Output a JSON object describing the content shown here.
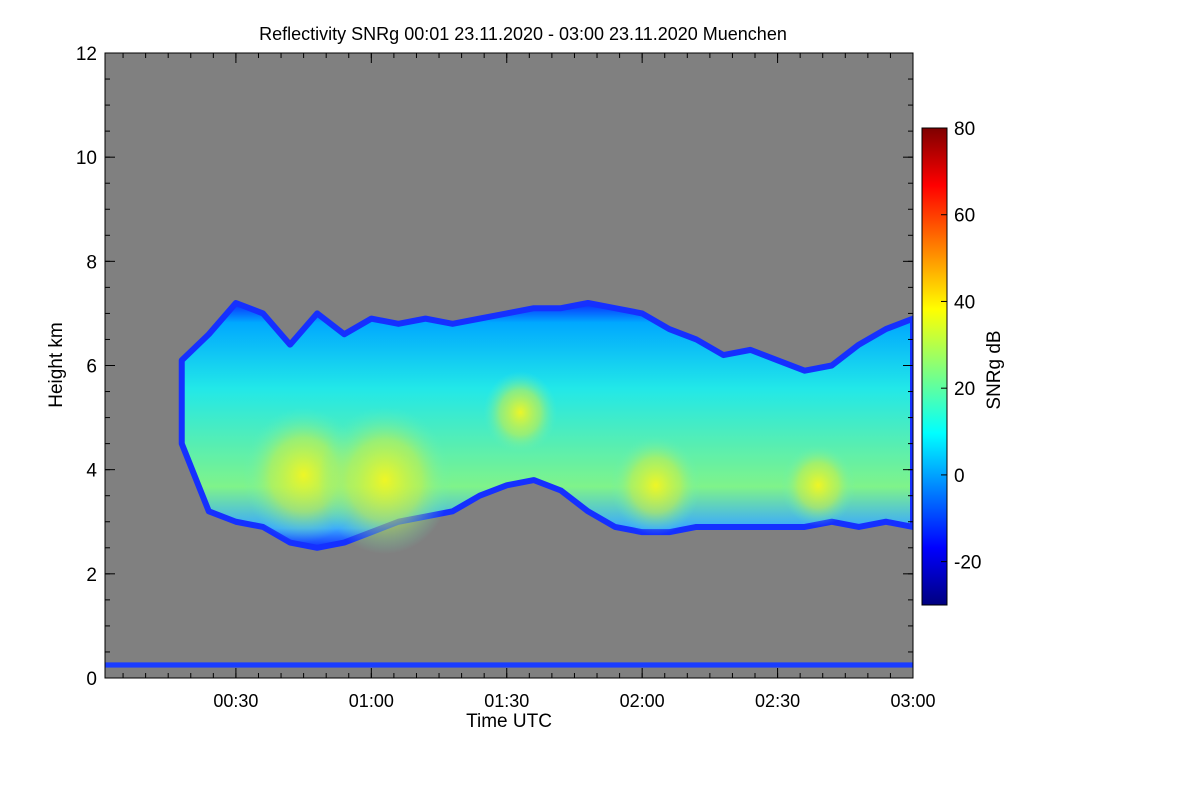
{
  "chart_data": {
    "type": "heatmap",
    "title": "Reflectivity SNRg   00:01 23.11.2020 - 03:00 23.11.2020 Muenchen",
    "xlabel": "Time UTC",
    "ylabel": "Height km",
    "x_range": [
      "00:01",
      "03:00"
    ],
    "x_ticks": [
      "00:30",
      "01:00",
      "01:30",
      "02:00",
      "02:30",
      "03:00"
    ],
    "y_range": [
      0,
      12
    ],
    "y_ticks": [
      "0",
      "2",
      "4",
      "6",
      "8",
      "10",
      "12"
    ],
    "colorbar": {
      "label": "SNRg dB",
      "range": [
        -30,
        80
      ],
      "ticks": [
        "-20",
        "0",
        "20",
        "40",
        "60",
        "80"
      ],
      "colormap": "jet"
    },
    "background_color": "#808080",
    "cloud": {
      "top_km": [
        [
          0.3,
          6.1
        ],
        [
          0.4,
          6.6
        ],
        [
          0.5,
          7.2
        ],
        [
          0.6,
          7.0
        ],
        [
          0.7,
          6.4
        ],
        [
          0.8,
          7.0
        ],
        [
          0.9,
          6.6
        ],
        [
          1.0,
          6.9
        ],
        [
          1.1,
          6.8
        ],
        [
          1.2,
          6.9
        ],
        [
          1.3,
          6.8
        ],
        [
          1.4,
          6.9
        ],
        [
          1.5,
          7.0
        ],
        [
          1.6,
          7.1
        ],
        [
          1.7,
          7.1
        ],
        [
          1.8,
          7.2
        ],
        [
          1.9,
          7.1
        ],
        [
          2.0,
          7.0
        ],
        [
          2.1,
          6.7
        ],
        [
          2.2,
          6.5
        ],
        [
          2.3,
          6.2
        ],
        [
          2.4,
          6.3
        ],
        [
          2.5,
          6.1
        ],
        [
          2.6,
          5.9
        ],
        [
          2.7,
          6.0
        ],
        [
          2.8,
          6.4
        ],
        [
          2.9,
          6.7
        ],
        [
          3.0,
          6.9
        ]
      ],
      "base_km": [
        [
          0.3,
          4.5
        ],
        [
          0.4,
          3.2
        ],
        [
          0.5,
          3.0
        ],
        [
          0.6,
          2.9
        ],
        [
          0.7,
          2.6
        ],
        [
          0.8,
          2.5
        ],
        [
          0.9,
          2.6
        ],
        [
          1.0,
          2.8
        ],
        [
          1.1,
          3.0
        ],
        [
          1.2,
          3.1
        ],
        [
          1.3,
          3.2
        ],
        [
          1.4,
          3.5
        ],
        [
          1.5,
          3.7
        ],
        [
          1.6,
          3.8
        ],
        [
          1.7,
          3.6
        ],
        [
          1.8,
          3.2
        ],
        [
          1.9,
          2.9
        ],
        [
          2.0,
          2.8
        ],
        [
          2.1,
          2.8
        ],
        [
          2.2,
          2.9
        ],
        [
          2.3,
          2.9
        ],
        [
          2.4,
          2.9
        ],
        [
          2.5,
          2.9
        ],
        [
          2.6,
          2.9
        ],
        [
          2.7,
          3.0
        ],
        [
          2.8,
          2.9
        ],
        [
          2.9,
          3.0
        ],
        [
          3.0,
          2.9
        ]
      ],
      "cores": [
        {
          "t": 0.75,
          "h": 3.9,
          "snr": 42
        },
        {
          "t": 1.05,
          "h": 3.8,
          "snr": 45
        },
        {
          "t": 1.55,
          "h": 5.1,
          "snr": 30
        },
        {
          "t": 2.05,
          "h": 3.7,
          "snr": 34
        },
        {
          "t": 2.65,
          "h": 3.7,
          "snr": 30
        }
      ]
    },
    "surface_clutter_km": [
      0.2,
      0.3
    ]
  }
}
